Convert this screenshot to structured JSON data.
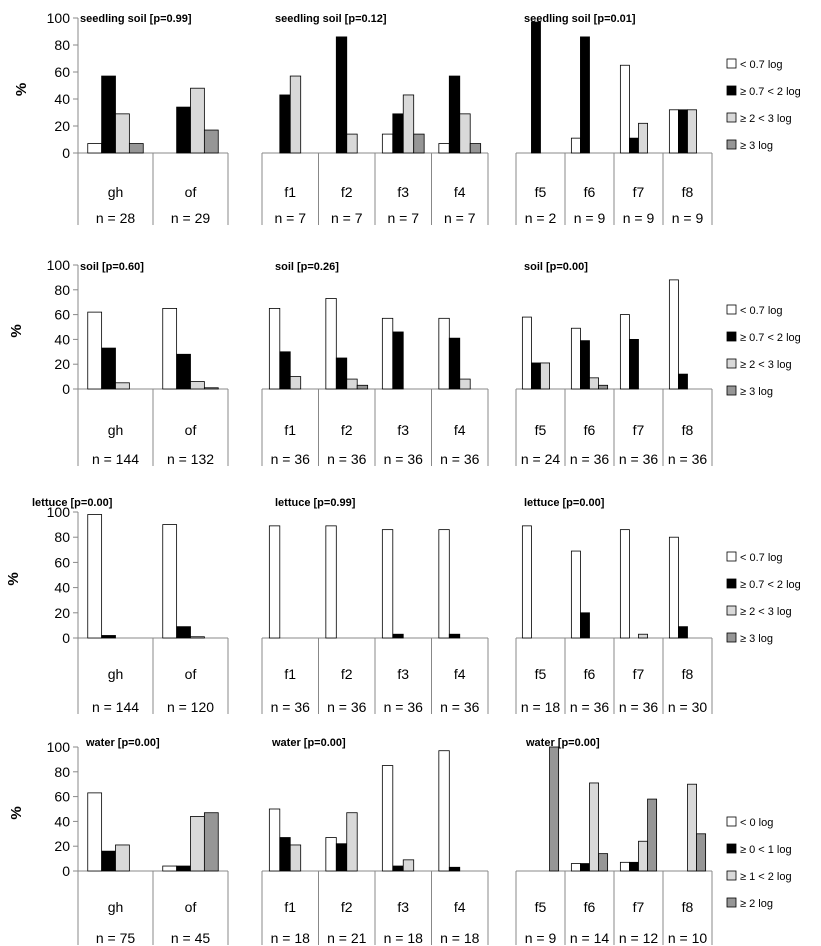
{
  "colors": {
    "white": "#ffffff",
    "black": "#000000",
    "light_gray": "#d9d9d9",
    "dark_gray": "#969696",
    "axis": "#888888"
  },
  "chart_data": [
    {
      "type": "bar",
      "row": 0,
      "col": 0,
      "title": "seedling soil [p=0.99]",
      "ylabel": "%",
      "ylim": [
        0,
        100
      ],
      "yticks": [
        0,
        20,
        40,
        60,
        80,
        100
      ],
      "categories": [
        "gh",
        "of"
      ],
      "counts": [
        "n = 28",
        "n = 29"
      ],
      "series": [
        {
          "name": "< 0.7 log",
          "values": [
            7,
            0
          ]
        },
        {
          "name": "≥ 0.7 < 2 log",
          "values": [
            57,
            34
          ]
        },
        {
          "name": "≥ 2 < 3 log",
          "values": [
            29,
            48
          ]
        },
        {
          "name": "≥ 3 log",
          "values": [
            7,
            17
          ]
        }
      ]
    },
    {
      "type": "bar",
      "row": 0,
      "col": 1,
      "title": "seedling soil [p=0.12]",
      "ylim": [
        0,
        100
      ],
      "categories": [
        "f1",
        "f2",
        "f3",
        "f4"
      ],
      "counts": [
        "n = 7",
        "n = 7",
        "n = 7",
        "n = 7"
      ],
      "series": [
        {
          "values": [
            0,
            0,
            14,
            7
          ]
        },
        {
          "values": [
            43,
            86,
            29,
            57
          ]
        },
        {
          "values": [
            57,
            14,
            43,
            29
          ]
        },
        {
          "values": [
            0,
            0,
            14,
            7
          ]
        }
      ]
    },
    {
      "type": "bar",
      "row": 0,
      "col": 2,
      "title": "seedling soil [p=0.01]",
      "ylim": [
        0,
        100
      ],
      "categories": [
        "f5",
        "f6",
        "f7",
        "f8"
      ],
      "counts": [
        "n = 2",
        "n = 9",
        "n = 9",
        "n = 9"
      ],
      "series": [
        {
          "values": [
            0,
            11,
            65,
            32
          ]
        },
        {
          "values": [
            97,
            86,
            11,
            32
          ]
        },
        {
          "values": [
            0,
            0,
            22,
            32
          ]
        },
        {
          "values": [
            0,
            0,
            0,
            0
          ]
        }
      ]
    },
    {
      "type": "bar",
      "row": 1,
      "col": 0,
      "title": "soil [p=0.60]",
      "ylabel": "%",
      "ylim": [
        0,
        100
      ],
      "yticks": [
        0,
        20,
        40,
        60,
        80,
        100
      ],
      "categories": [
        "gh",
        "of"
      ],
      "counts": [
        "n = 144",
        "n = 132"
      ],
      "series": [
        {
          "name": "< 0.7 log",
          "values": [
            62,
            65
          ]
        },
        {
          "name": "≥ 0.7 < 2 log",
          "values": [
            33,
            28
          ]
        },
        {
          "name": "≥ 2 < 3 log",
          "values": [
            5,
            6
          ]
        },
        {
          "name": "≥ 3 log",
          "values": [
            0,
            1
          ]
        }
      ]
    },
    {
      "type": "bar",
      "row": 1,
      "col": 1,
      "title": "soil [p=0.26]",
      "ylim": [
        0,
        100
      ],
      "categories": [
        "f1",
        "f2",
        "f3",
        "f4"
      ],
      "counts": [
        "n = 36",
        "n = 36",
        "n = 36",
        "n = 36"
      ],
      "series": [
        {
          "values": [
            65,
            73,
            57,
            57
          ]
        },
        {
          "values": [
            30,
            25,
            46,
            41
          ]
        },
        {
          "values": [
            10,
            8,
            0,
            8
          ]
        },
        {
          "values": [
            0,
            3,
            0,
            0
          ]
        }
      ]
    },
    {
      "type": "bar",
      "row": 1,
      "col": 2,
      "title": "soil [p=0.00]",
      "ylim": [
        0,
        100
      ],
      "categories": [
        "f5",
        "f6",
        "f7",
        "f8"
      ],
      "counts": [
        "n = 24",
        "n = 36",
        "n = 36",
        "n = 36"
      ],
      "series": [
        {
          "values": [
            58,
            49,
            60,
            88
          ]
        },
        {
          "values": [
            21,
            39,
            40,
            12
          ]
        },
        {
          "values": [
            21,
            9,
            0,
            0
          ]
        },
        {
          "values": [
            0,
            3,
            0,
            0
          ]
        }
      ]
    },
    {
      "type": "bar",
      "row": 2,
      "col": 0,
      "title": "lettuce [p=0.00]",
      "ylabel": "%",
      "ylim": [
        0,
        100
      ],
      "yticks": [
        0,
        20,
        40,
        60,
        80,
        100
      ],
      "categories": [
        "gh",
        "of"
      ],
      "counts": [
        "n = 144",
        "n = 120"
      ],
      "series": [
        {
          "name": "< 0.7 log",
          "values": [
            98,
            90
          ]
        },
        {
          "name": "≥ 0.7 < 2 log",
          "values": [
            2,
            9
          ]
        },
        {
          "name": "≥ 2 < 3 log",
          "values": [
            0,
            1
          ]
        },
        {
          "name": "≥ 3 log",
          "values": [
            0,
            0
          ]
        }
      ]
    },
    {
      "type": "bar",
      "row": 2,
      "col": 1,
      "title": "lettuce [p=0.99]",
      "ylim": [
        0,
        100
      ],
      "categories": [
        "f1",
        "f2",
        "f3",
        "f4"
      ],
      "counts": [
        "n = 36",
        "n = 36",
        "n = 36",
        "n = 36"
      ],
      "series": [
        {
          "values": [
            89,
            89,
            86,
            86
          ]
        },
        {
          "values": [
            0,
            0,
            3,
            3
          ]
        },
        {
          "values": [
            0,
            0,
            0,
            0
          ]
        },
        {
          "values": [
            0,
            0,
            0,
            0
          ]
        }
      ]
    },
    {
      "type": "bar",
      "row": 2,
      "col": 2,
      "title": "lettuce [p=0.00]",
      "ylim": [
        0,
        100
      ],
      "categories": [
        "f5",
        "f6",
        "f7",
        "f8"
      ],
      "counts": [
        "n = 18",
        "n = 36",
        "n = 36",
        "n = 30"
      ],
      "series": [
        {
          "values": [
            89,
            69,
            86,
            80
          ]
        },
        {
          "values": [
            0,
            20,
            0,
            9
          ]
        },
        {
          "values": [
            0,
            0,
            3,
            0
          ]
        },
        {
          "values": [
            0,
            0,
            0,
            0
          ]
        }
      ]
    },
    {
      "type": "bar",
      "row": 3,
      "col": 0,
      "title": "water [p=0.00]",
      "ylabel": "%",
      "ylim": [
        0,
        100
      ],
      "yticks": [
        0,
        20,
        40,
        60,
        80,
        100
      ],
      "categories": [
        "gh",
        "of"
      ],
      "counts": [
        "n = 75",
        "n = 45"
      ],
      "series": [
        {
          "name": "< 0 log",
          "values": [
            63,
            4
          ]
        },
        {
          "name": "≥ 0 < 1 log",
          "values": [
            16,
            4
          ]
        },
        {
          "name": "≥ 1 < 2 log",
          "values": [
            21,
            44
          ]
        },
        {
          "name": "≥ 2 log",
          "values": [
            0,
            47
          ]
        }
      ]
    },
    {
      "type": "bar",
      "row": 3,
      "col": 1,
      "title": "water [p=0.00]",
      "ylim": [
        0,
        100
      ],
      "categories": [
        "f1",
        "f2",
        "f3",
        "f4"
      ],
      "counts": [
        "n = 18",
        "n = 21",
        "n = 18",
        "n = 18"
      ],
      "series": [
        {
          "values": [
            50,
            27,
            85,
            97
          ]
        },
        {
          "values": [
            27,
            22,
            4,
            3
          ]
        },
        {
          "values": [
            21,
            47,
            9,
            0
          ]
        },
        {
          "values": [
            0,
            0,
            0,
            0
          ]
        }
      ]
    },
    {
      "type": "bar",
      "row": 3,
      "col": 2,
      "title": "water [p=0.00]",
      "ylim": [
        0,
        100
      ],
      "categories": [
        "f5",
        "f6",
        "f7",
        "f8"
      ],
      "counts": [
        "n = 9",
        "n = 14",
        "n = 12",
        "n = 10"
      ],
      "series": [
        {
          "values": [
            0,
            6,
            7,
            0
          ]
        },
        {
          "values": [
            0,
            6,
            7,
            0
          ]
        },
        {
          "values": [
            0,
            71,
            24,
            70
          ]
        },
        {
          "values": [
            100,
            14,
            58,
            30
          ]
        }
      ]
    }
  ]
}
